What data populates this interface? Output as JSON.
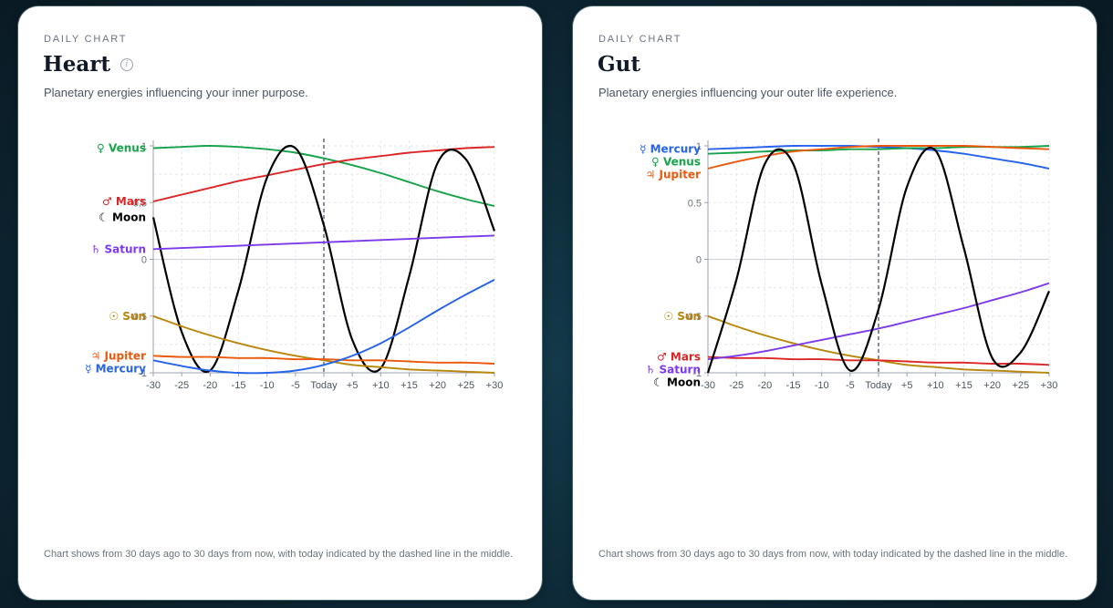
{
  "cards": [
    {
      "eyebrow": "DAILY CHART",
      "title": "Heart",
      "subtitle": "Planetary energies influencing your inner purpose.",
      "note": "Chart shows from 30 days ago to 30 days from now, with today indicated by the dashed line in the middle."
    },
    {
      "eyebrow": "DAILY CHART",
      "title": "Gut",
      "subtitle": "Planetary energies influencing your outer life experience.",
      "note": "Chart shows from 30 days ago to 30 days from now, with today indicated by the dashed line in the middle."
    }
  ],
  "chart_data": [
    {
      "type": "line",
      "x": [
        -30,
        -25,
        -20,
        -15,
        -10,
        -5,
        0,
        5,
        10,
        15,
        20,
        25,
        30
      ],
      "x_tick_labels": [
        "-30",
        "-25",
        "-20",
        "-15",
        "-10",
        "-5",
        "Today",
        "+5",
        "+10",
        "+15",
        "+20",
        "+25",
        "+30"
      ],
      "y_tick_labels": [
        "1",
        "0.5",
        "0",
        "-0.5",
        "-1"
      ],
      "y_ticks": [
        1,
        0.5,
        0,
        -0.5,
        -1
      ],
      "ylim": [
        -1,
        1
      ],
      "xlim": [
        -30,
        30
      ],
      "grid": true,
      "today_marker": "dashed vertical line at x = 0",
      "series": [
        {
          "name": "Venus",
          "symbol": "♀",
          "color": "#16a34a",
          "values": [
            0.98,
            0.99,
            1.0,
            0.99,
            0.97,
            0.94,
            0.89,
            0.83,
            0.76,
            0.68,
            0.6,
            0.53,
            0.47
          ]
        },
        {
          "name": "Mars",
          "symbol": "♂",
          "color": "#dc2626",
          "values": [
            0.51,
            0.57,
            0.63,
            0.69,
            0.74,
            0.79,
            0.84,
            0.88,
            0.91,
            0.94,
            0.96,
            0.98,
            0.99
          ]
        },
        {
          "name": "Moon",
          "symbol": "☾",
          "color": "#000000",
          "values": [
            0.37,
            -0.64,
            -0.98,
            -0.27,
            0.72,
            0.98,
            0.3,
            -0.71,
            -0.96,
            -0.15,
            0.85,
            0.88,
            0.25
          ]
        },
        {
          "name": "Saturn",
          "symbol": "♄",
          "color": "#7c3aed",
          "values": [
            0.09,
            0.1,
            0.11,
            0.12,
            0.13,
            0.14,
            0.15,
            0.16,
            0.17,
            0.18,
            0.19,
            0.2,
            0.21
          ]
        },
        {
          "name": "Sun",
          "symbol": "☉",
          "color": "#b8860b",
          "values": [
            -0.5,
            -0.59,
            -0.67,
            -0.74,
            -0.8,
            -0.85,
            -0.89,
            -0.93,
            -0.95,
            -0.97,
            -0.98,
            -0.99,
            -1.0
          ]
        },
        {
          "name": "Jupiter",
          "symbol": "♃",
          "color": "#ea580c",
          "values": [
            -0.85,
            -0.86,
            -0.86,
            -0.87,
            -0.87,
            -0.88,
            -0.88,
            -0.89,
            -0.89,
            -0.9,
            -0.91,
            -0.91,
            -0.92
          ]
        },
        {
          "name": "Mercury",
          "symbol": "☿",
          "color": "#2563eb",
          "values": [
            -0.89,
            -0.94,
            -0.98,
            -1.0,
            -1.0,
            -0.98,
            -0.93,
            -0.85,
            -0.74,
            -0.6,
            -0.45,
            -0.31,
            -0.18
          ]
        }
      ]
    },
    {
      "type": "line",
      "x": [
        -30,
        -25,
        -20,
        -15,
        -10,
        -5,
        0,
        5,
        10,
        15,
        20,
        25,
        30
      ],
      "x_tick_labels": [
        "-30",
        "-25",
        "-20",
        "-15",
        "-10",
        "-5",
        "Today",
        "+5",
        "+10",
        "+15",
        "+20",
        "+25",
        "+30"
      ],
      "y_tick_labels": [
        "1",
        "0.5",
        "0",
        "-0.5",
        "-1"
      ],
      "y_ticks": [
        1,
        0.5,
        0,
        -0.5,
        -1
      ],
      "ylim": [
        -1,
        1
      ],
      "xlim": [
        -30,
        30
      ],
      "grid": true,
      "today_marker": "dashed vertical line at x = 0",
      "series": [
        {
          "name": "Mercury",
          "symbol": "☿",
          "color": "#2563eb",
          "values": [
            0.97,
            0.98,
            0.99,
            1.0,
            1.0,
            1.0,
            0.99,
            0.98,
            0.96,
            0.93,
            0.89,
            0.85,
            0.8
          ]
        },
        {
          "name": "Venus",
          "symbol": "♀",
          "color": "#16a34a",
          "values": [
            0.93,
            0.94,
            0.95,
            0.96,
            0.96,
            0.97,
            0.97,
            0.98,
            0.98,
            0.99,
            0.99,
            0.99,
            1.0
          ]
        },
        {
          "name": "Jupiter",
          "symbol": "♃",
          "color": "#ea580c",
          "values": [
            0.8,
            0.86,
            0.91,
            0.95,
            0.97,
            0.99,
            1.0,
            1.0,
            1.0,
            1.0,
            0.99,
            0.98,
            0.97
          ]
        },
        {
          "name": "Sun",
          "symbol": "☉",
          "color": "#b8860b",
          "values": [
            -0.5,
            -0.59,
            -0.67,
            -0.74,
            -0.8,
            -0.85,
            -0.89,
            -0.93,
            -0.95,
            -0.97,
            -0.98,
            -0.99,
            -1.0
          ]
        },
        {
          "name": "Mars",
          "symbol": "♂",
          "color": "#dc2626",
          "values": [
            -0.86,
            -0.87,
            -0.87,
            -0.88,
            -0.88,
            -0.89,
            -0.89,
            -0.9,
            -0.91,
            -0.91,
            -0.92,
            -0.92,
            -0.93
          ]
        },
        {
          "name": "Saturn",
          "symbol": "♄",
          "color": "#7c3aed",
          "values": [
            -0.88,
            -0.85,
            -0.81,
            -0.76,
            -0.71,
            -0.66,
            -0.61,
            -0.55,
            -0.49,
            -0.43,
            -0.36,
            -0.29,
            -0.21
          ]
        },
        {
          "name": "Moon",
          "symbol": "☾",
          "color": "#000000",
          "values": [
            -1.0,
            -0.18,
            0.84,
            0.84,
            -0.22,
            -0.98,
            -0.44,
            0.64,
            0.96,
            0.1,
            -0.87,
            -0.82,
            -0.28
          ]
        }
      ]
    }
  ]
}
